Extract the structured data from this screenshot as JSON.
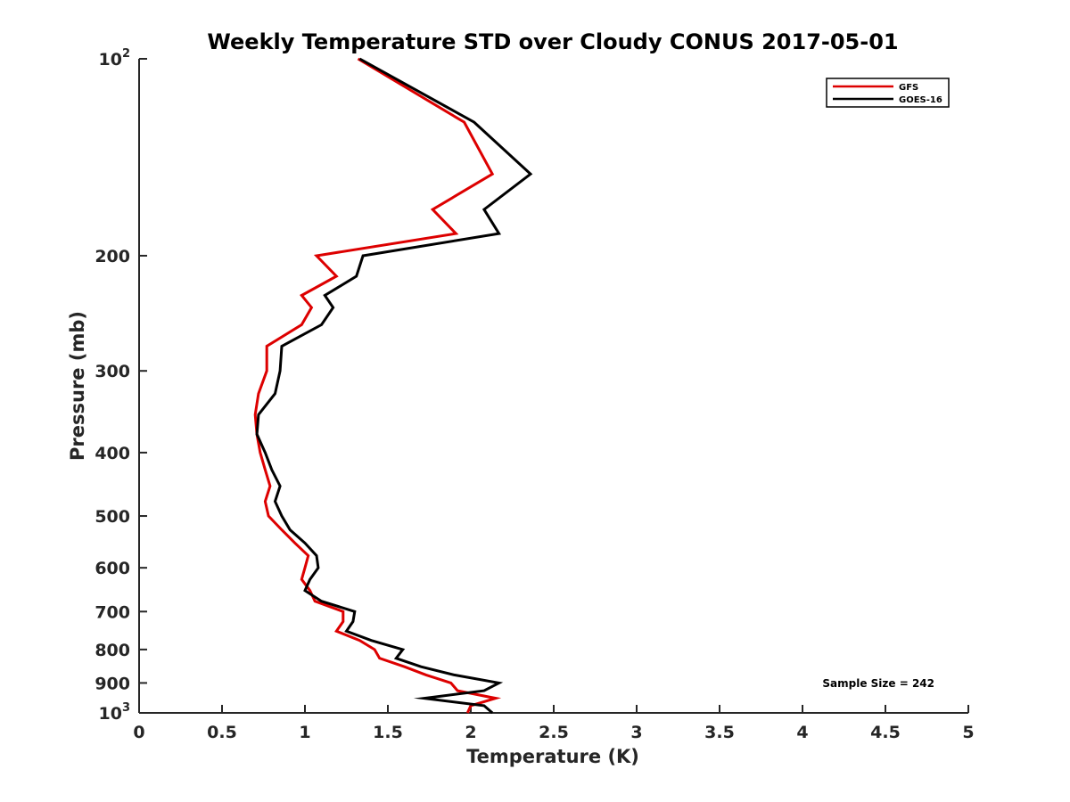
{
  "chart_data": {
    "type": "line",
    "title": "Weekly Temperature STD over Cloudy CONUS 2017-05-01",
    "xlabel": "Temperature (K)",
    "ylabel": "Pressure (mb)",
    "xlim": [
      0,
      5
    ],
    "ylim": [
      100,
      1000
    ],
    "y_scale": "log",
    "y_reversed": true,
    "x_ticks": [
      0,
      0.5,
      1,
      1.5,
      2,
      2.5,
      3,
      3.5,
      4,
      4.5,
      5
    ],
    "x_tick_labels": [
      "0",
      "0.5",
      "1",
      "1.5",
      "2",
      "2.5",
      "3",
      "3.5",
      "4",
      "4.5",
      "5"
    ],
    "y_ticks": [
      {
        "value": 100,
        "base": "10",
        "exp": "2"
      },
      {
        "value": 200,
        "label": "200"
      },
      {
        "value": 300,
        "label": "300"
      },
      {
        "value": 400,
        "label": "400"
      },
      {
        "value": 500,
        "label": "500"
      },
      {
        "value": 600,
        "label": "600"
      },
      {
        "value": 700,
        "label": "700"
      },
      {
        "value": 800,
        "label": "800"
      },
      {
        "value": 900,
        "label": "900"
      },
      {
        "value": 1000,
        "base": "10",
        "exp": "3"
      }
    ],
    "grid": false,
    "legend_position": "top-right",
    "annotation": "Sample Size = 242",
    "series": [
      {
        "name": "GFS",
        "color": "#dd0000",
        "points": [
          [
            1.32,
            100
          ],
          [
            1.96,
            125
          ],
          [
            2.13,
            150
          ],
          [
            1.77,
            170
          ],
          [
            1.91,
            185
          ],
          [
            1.07,
            200
          ],
          [
            1.19,
            215
          ],
          [
            0.98,
            230
          ],
          [
            1.04,
            240
          ],
          [
            0.98,
            255
          ],
          [
            0.77,
            275
          ],
          [
            0.77,
            300
          ],
          [
            0.72,
            325
          ],
          [
            0.7,
            350
          ],
          [
            0.71,
            375
          ],
          [
            0.73,
            400
          ],
          [
            0.76,
            425
          ],
          [
            0.79,
            450
          ],
          [
            0.76,
            475
          ],
          [
            0.78,
            500
          ],
          [
            0.86,
            525
          ],
          [
            0.94,
            550
          ],
          [
            1.02,
            575
          ],
          [
            1.0,
            600
          ],
          [
            0.98,
            625
          ],
          [
            1.03,
            650
          ],
          [
            1.06,
            675
          ],
          [
            1.23,
            700
          ],
          [
            1.23,
            725
          ],
          [
            1.19,
            750
          ],
          [
            1.33,
            775
          ],
          [
            1.42,
            800
          ],
          [
            1.45,
            825
          ],
          [
            1.6,
            850
          ],
          [
            1.73,
            875
          ],
          [
            1.88,
            900
          ],
          [
            1.92,
            925
          ],
          [
            2.15,
            950
          ],
          [
            2.0,
            975
          ],
          [
            1.98,
            1000
          ]
        ]
      },
      {
        "name": "GOES-16",
        "color": "#000000",
        "points": [
          [
            1.33,
            100
          ],
          [
            2.02,
            125
          ],
          [
            2.36,
            150
          ],
          [
            2.08,
            170
          ],
          [
            2.17,
            185
          ],
          [
            1.35,
            200
          ],
          [
            1.31,
            215
          ],
          [
            1.12,
            230
          ],
          [
            1.17,
            240
          ],
          [
            1.1,
            255
          ],
          [
            0.86,
            275
          ],
          [
            0.85,
            300
          ],
          [
            0.82,
            325
          ],
          [
            0.72,
            350
          ],
          [
            0.71,
            375
          ],
          [
            0.76,
            400
          ],
          [
            0.8,
            425
          ],
          [
            0.85,
            450
          ],
          [
            0.82,
            475
          ],
          [
            0.86,
            500
          ],
          [
            0.91,
            525
          ],
          [
            1.0,
            550
          ],
          [
            1.07,
            575
          ],
          [
            1.08,
            600
          ],
          [
            1.03,
            625
          ],
          [
            1.0,
            650
          ],
          [
            1.1,
            675
          ],
          [
            1.3,
            700
          ],
          [
            1.29,
            725
          ],
          [
            1.25,
            750
          ],
          [
            1.4,
            775
          ],
          [
            1.59,
            800
          ],
          [
            1.55,
            825
          ],
          [
            1.7,
            850
          ],
          [
            1.9,
            875
          ],
          [
            2.17,
            900
          ],
          [
            2.08,
            925
          ],
          [
            1.72,
            950
          ],
          [
            2.08,
            975
          ],
          [
            2.13,
            1000
          ]
        ]
      }
    ]
  }
}
